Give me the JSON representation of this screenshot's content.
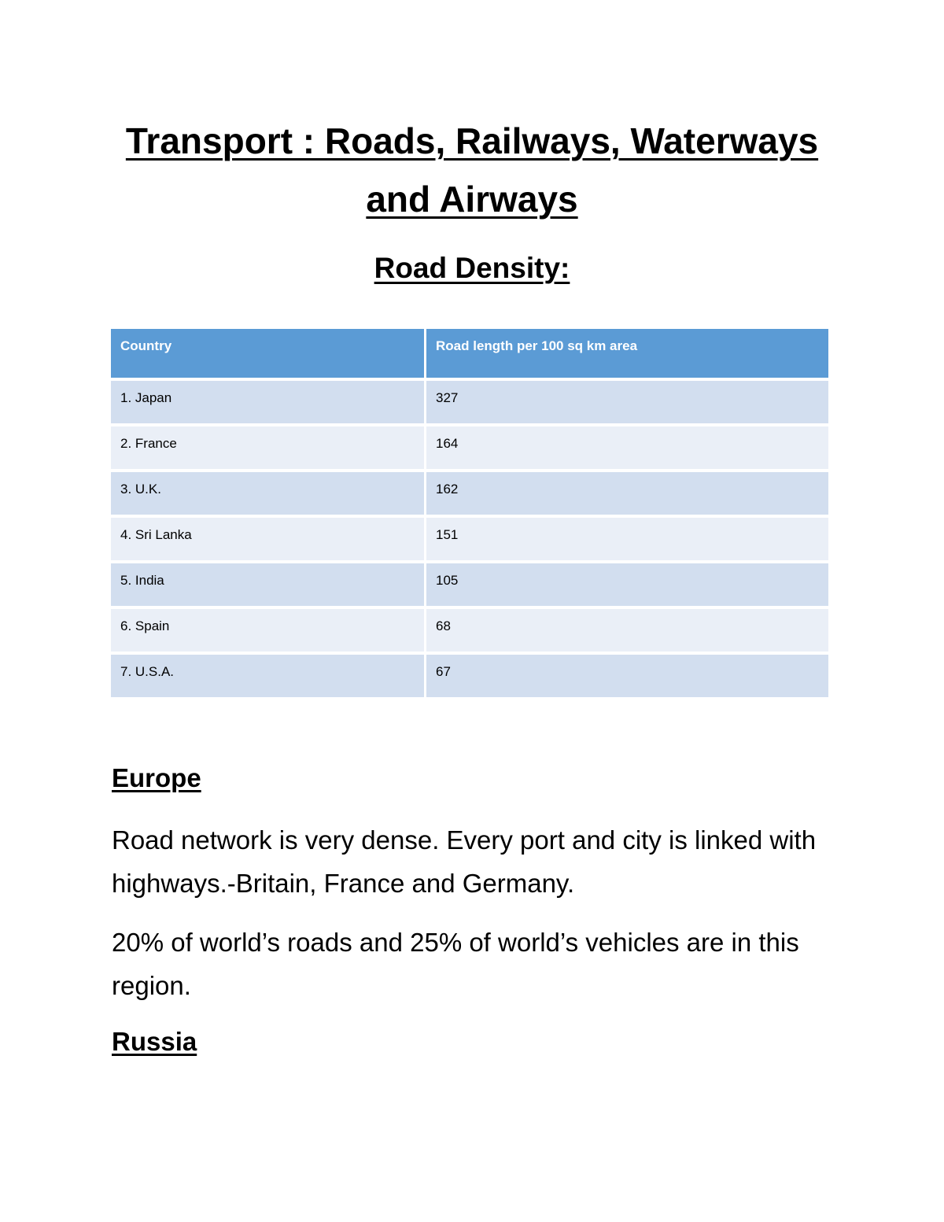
{
  "title_line1": "Transport : Roads, Railways, Waterways",
  "title_line2": "and Airways",
  "subtitle": "Road Density:",
  "table": {
    "headers": [
      "Country",
      "Road length per 100 sq km area"
    ],
    "rows": [
      {
        "country": "1. Japan",
        "value": "327"
      },
      {
        "country": "2. France",
        "value": "164"
      },
      {
        "country": "3. U.K.",
        "value": "162"
      },
      {
        "country": "4. Sri Lanka",
        "value": "151"
      },
      {
        "country": "5. India",
        "value": "105"
      },
      {
        "country": "6. Spain",
        "value": "68"
      },
      {
        "country": "7. U.S.A.",
        "value": "67"
      }
    ]
  },
  "europe": {
    "heading": "Europe",
    "para1": "Road network is very dense. Every port and city is linked with highways.-Britain, France and Germany.",
    "para2": "20% of world’s roads and 25% of world’s vehicles are in this region."
  },
  "russia": {
    "heading": "Russia"
  },
  "colors": {
    "header": "#5B9BD5",
    "row_odd": "#D2DEEF",
    "row_even": "#EAEFF7"
  }
}
